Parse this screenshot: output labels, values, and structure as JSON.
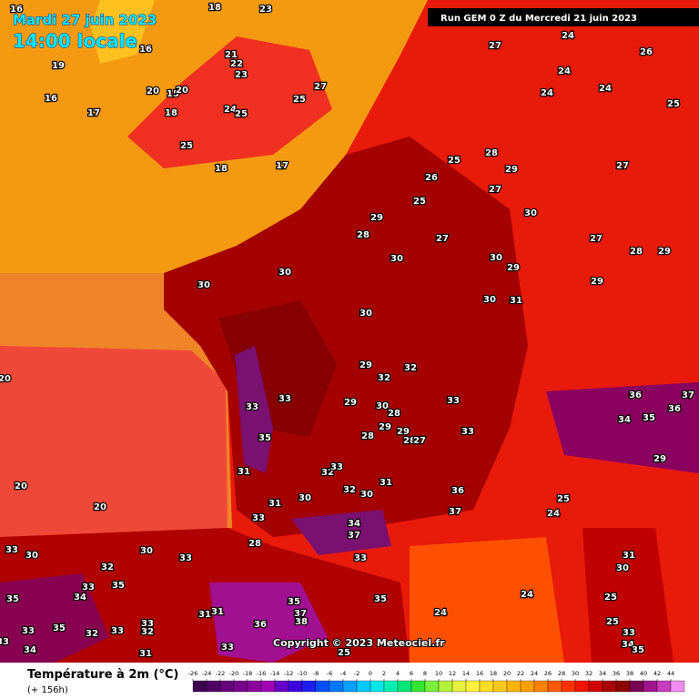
{
  "header": {
    "date": "Mardi 27 juin 2023",
    "time": "14:00 locale",
    "run": "Run GEM 0 Z du Mercredi 21 juin 2023"
  },
  "copyright": "Copyright © 2023 Meteociel.fr",
  "legend": {
    "title": "Température à 2m (°C)",
    "subtitle": "(+ 156h)",
    "ticks": [
      -26,
      -24,
      -22,
      -20,
      -18,
      -16,
      -14,
      -12,
      -10,
      -8,
      -6,
      -4,
      -2,
      0,
      2,
      4,
      6,
      8,
      10,
      12,
      14,
      16,
      18,
      20,
      22,
      24,
      26,
      28,
      30,
      32,
      34,
      36,
      38,
      40,
      42,
      44
    ],
    "colors": [
      "#3c0050",
      "#500064",
      "#64007a",
      "#78008c",
      "#8c00a0",
      "#a000b4",
      "#6400c8",
      "#3c00dc",
      "#1e1ef0",
      "#0050ff",
      "#0078ff",
      "#00a0ff",
      "#00c8ff",
      "#00e6e6",
      "#00f0b4",
      "#00e678",
      "#32e632",
      "#78f03c",
      "#b4f03c",
      "#e6f03c",
      "#fff03c",
      "#ffdc28",
      "#ffc81e",
      "#ffb400",
      "#ffa000",
      "#ff8200",
      "#ff5a00",
      "#ff3200",
      "#f01400",
      "#d20000",
      "#aa0000",
      "#8c0000",
      "#780050",
      "#a0148c",
      "#c83cbe",
      "#f08cf0"
    ]
  },
  "map": {
    "labels": [
      16,
      18,
      23,
      16,
      19,
      16,
      20,
      15,
      20,
      21,
      22,
      23,
      18,
      17,
      24,
      25,
      25,
      27,
      25,
      18,
      17,
      27,
      24,
      24,
      26,
      24,
      24,
      25,
      28,
      25,
      29,
      27,
      26,
      27,
      25,
      29,
      30,
      28,
      27,
      27,
      28,
      29,
      30,
      30,
      29,
      30,
      30,
      29,
      30,
      31,
      30,
      29,
      32,
      32,
      33,
      33,
      33,
      30,
      29,
      28,
      29,
      29,
      28,
      28,
      27,
      33,
      35,
      31,
      32,
      33,
      32,
      31,
      30,
      30,
      31,
      33,
      36,
      37,
      37,
      34,
      33,
      28,
      20,
      20,
      20,
      33,
      30,
      30,
      33,
      32,
      33,
      34,
      35,
      35,
      33,
      33,
      34,
      35,
      32,
      33,
      33,
      32,
      31,
      31,
      31,
      36,
      35,
      37,
      38,
      35,
      24,
      24,
      25,
      24,
      36,
      34,
      35,
      37,
      36,
      29,
      31,
      30,
      25,
      25,
      33,
      34,
      35,
      33,
      25
    ]
  }
}
